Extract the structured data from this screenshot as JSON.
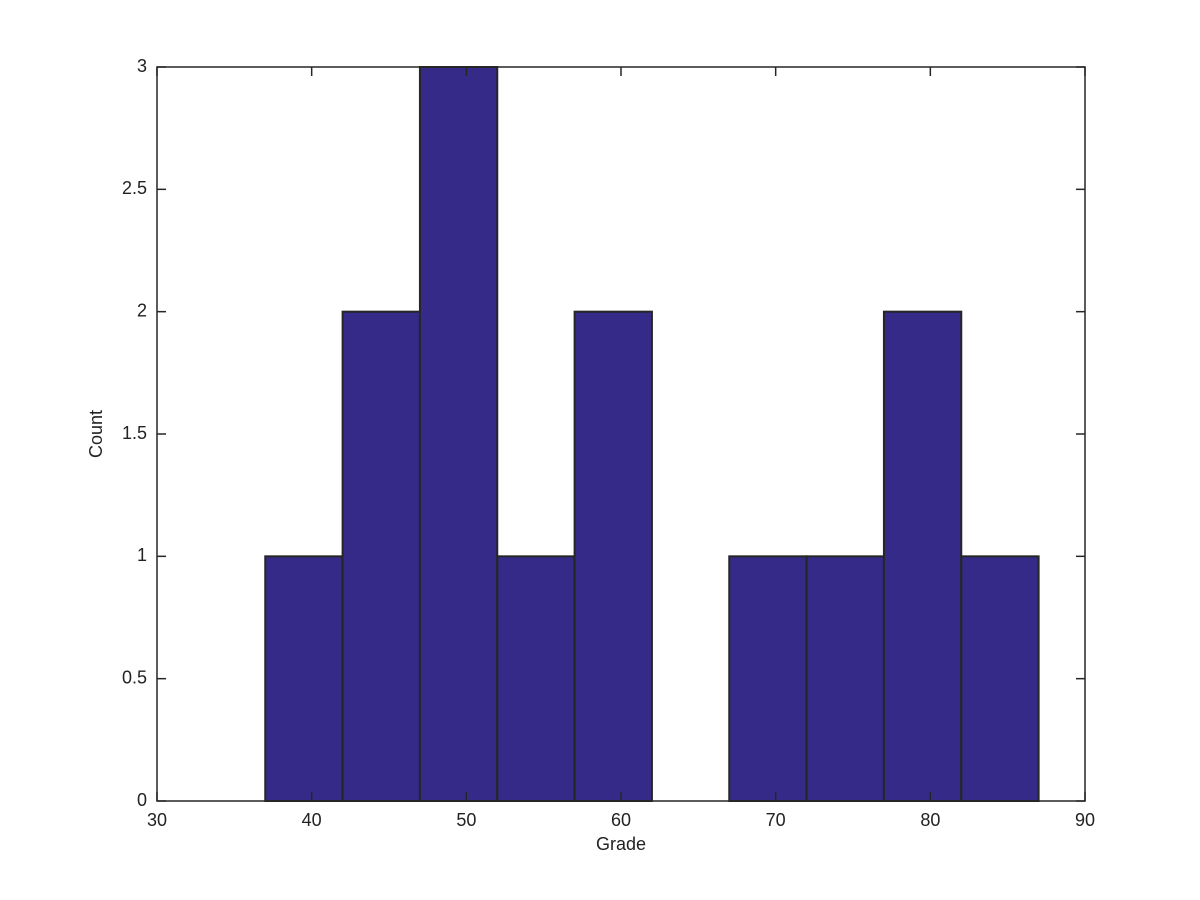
{
  "chart_data": {
    "type": "histogram",
    "x_label": "Grade",
    "y_label": "Count",
    "bins": [
      37,
      42,
      47,
      52,
      57,
      62,
      67,
      72,
      77,
      82,
      87
    ],
    "values": [
      1,
      2,
      3,
      1,
      2,
      0,
      1,
      1,
      2,
      1
    ],
    "color": "#352a87",
    "edge_color": "#262626",
    "xlim": [
      30,
      90
    ],
    "xticks": [
      30,
      40,
      50,
      60,
      70,
      80,
      90
    ],
    "ylim": [
      0,
      3
    ],
    "yticks": [
      0,
      0.5,
      1,
      1.5,
      2,
      2.5,
      3
    ],
    "grid": false
  }
}
